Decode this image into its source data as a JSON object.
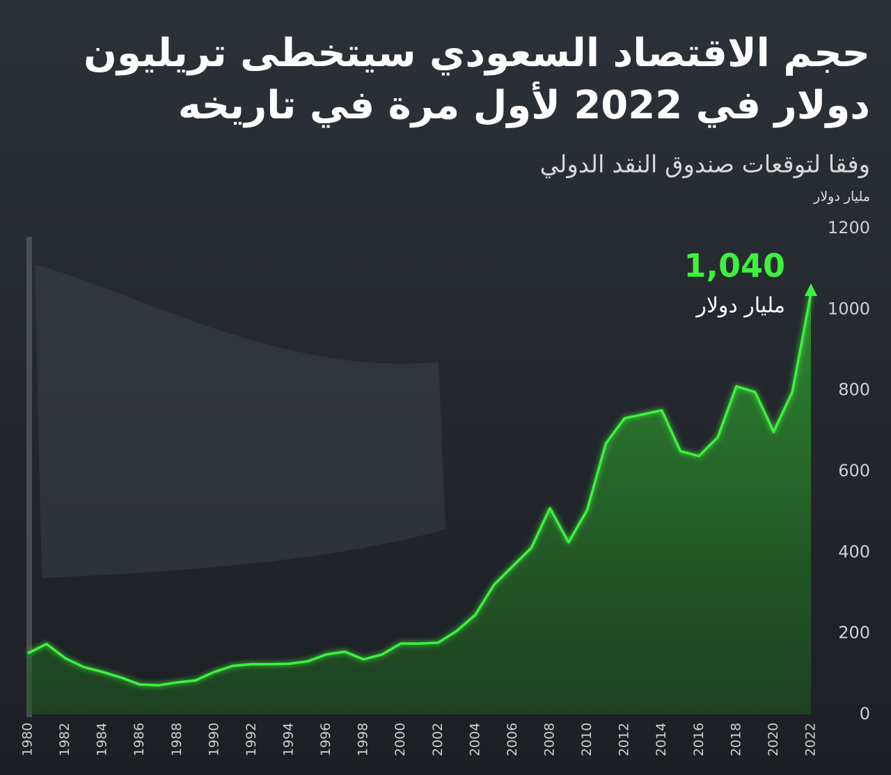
{
  "chart_data": {
    "type": "line",
    "title": [
      "حجم الاقتصاد السعودي سيتخطى تريليون",
      "دولار في 2022  لأول مرة في تاريخه"
    ],
    "subtitle": "وفقا لتوقعات صندوق النقد الدولي",
    "y_label": "مليار دولار",
    "annotation": "مليار دولار",
    "x": [
      1980,
      1981,
      1982,
      1983,
      1984,
      1985,
      1986,
      1987,
      1988,
      1989,
      1990,
      1991,
      1992,
      1993,
      1994,
      1995,
      1996,
      1997,
      1998,
      1999,
      2000,
      2001,
      2002,
      2003,
      2004,
      2005,
      2006,
      2007,
      2008,
      2009,
      2010,
      2011,
      2012,
      2013,
      2014,
      2015,
      2016,
      2017,
      2018,
      2019,
      2020,
      2021,
      2022
    ],
    "series": [
      {
        "color": "#3df23d",
        "values": [
          151,
          174,
          139,
          117,
          105,
          91,
          74,
          72,
          79,
          84,
          105,
          120,
          124,
          124,
          125,
          131,
          148,
          155,
          136,
          148,
          175,
          175,
          177,
          206,
          246,
          320,
          366,
          411,
          509,
          425,
          505,
          669,
          731,
          741,
          751,
          650,
          638,
          684,
          810,
          796,
          698,
          796,
          1040
        ],
        "value_labels": [
          null,
          null,
          null,
          null,
          null,
          null,
          null,
          null,
          null,
          null,
          null,
          null,
          null,
          null,
          null,
          null,
          null,
          null,
          null,
          null,
          null,
          null,
          null,
          null,
          null,
          null,
          null,
          null,
          null,
          null,
          null,
          null,
          null,
          null,
          null,
          null,
          null,
          null,
          null,
          null,
          null,
          null,
          "1,040"
        ]
      }
    ],
    "xlim": [
      1980,
      2022
    ],
    "xticks": [
      1980,
      1982,
      1984,
      1986,
      1988,
      1990,
      1992,
      1994,
      1996,
      1998,
      2000,
      2002,
      2004,
      2006,
      2008,
      2010,
      2012,
      2014,
      2016,
      2018,
      2020,
      2022
    ],
    "ylim": [
      0,
      1200
    ],
    "yticks": [
      0,
      200,
      400,
      600,
      800,
      1000,
      1200
    ],
    "grid": false
  }
}
